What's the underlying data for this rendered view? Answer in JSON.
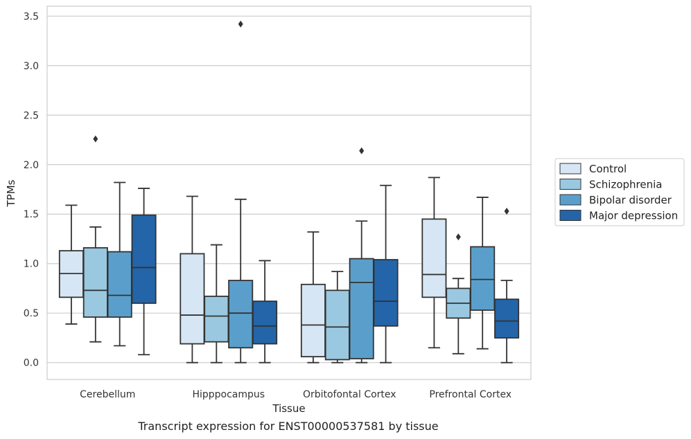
{
  "chart_data": {
    "type": "boxplot",
    "xlabel": "Tissue",
    "ylabel": "TPMs",
    "ylim": [
      -0.17,
      3.6
    ],
    "yticks": [
      0.0,
      0.5,
      1.0,
      1.5,
      2.0,
      2.5,
      3.0,
      3.5
    ],
    "ytick_labels": [
      "0.0",
      "0.5",
      "1.0",
      "1.5",
      "2.0",
      "2.5",
      "3.0",
      "3.5"
    ],
    "grid": true,
    "legend_position": "right",
    "categories": [
      "Cerebellum",
      "Hipppocampus",
      "Orbitofontal Cortex",
      "Prefrontal Cortex"
    ],
    "series": [
      {
        "name": "Control",
        "color": "#d6e6f4",
        "boxes": [
          {
            "whislo": 0.39,
            "q1": 0.66,
            "med": 0.9,
            "q3": 1.13,
            "whishi": 1.59,
            "fliers": []
          },
          {
            "whislo": 0.0,
            "q1": 0.19,
            "med": 0.48,
            "q3": 1.1,
            "whishi": 1.68,
            "fliers": []
          },
          {
            "whislo": 0.0,
            "q1": 0.06,
            "med": 0.38,
            "q3": 0.79,
            "whishi": 1.32,
            "fliers": []
          },
          {
            "whislo": 0.15,
            "q1": 0.66,
            "med": 0.89,
            "q3": 1.45,
            "whishi": 1.87,
            "fliers": []
          }
        ]
      },
      {
        "name": "Schizophrenia",
        "color": "#9ac8e0",
        "boxes": [
          {
            "whislo": 0.21,
            "q1": 0.46,
            "med": 0.73,
            "q3": 1.16,
            "whishi": 1.37,
            "fliers": [
              2.26
            ]
          },
          {
            "whislo": 0.0,
            "q1": 0.21,
            "med": 0.47,
            "q3": 0.67,
            "whishi": 1.19,
            "fliers": []
          },
          {
            "whislo": 0.0,
            "q1": 0.03,
            "med": 0.36,
            "q3": 0.73,
            "whishi": 0.92,
            "fliers": []
          },
          {
            "whislo": 0.09,
            "q1": 0.45,
            "med": 0.6,
            "q3": 0.75,
            "whishi": 0.85,
            "fliers": [
              1.27
            ]
          }
        ]
      },
      {
        "name": "Bipolar disorder",
        "color": "#5a9fcb",
        "boxes": [
          {
            "whislo": 0.17,
            "q1": 0.46,
            "med": 0.68,
            "q3": 1.12,
            "whishi": 1.82,
            "fliers": []
          },
          {
            "whislo": 0.0,
            "q1": 0.15,
            "med": 0.5,
            "q3": 0.83,
            "whishi": 1.65,
            "fliers": [
              3.42
            ]
          },
          {
            "whislo": 0.0,
            "q1": 0.04,
            "med": 0.81,
            "q3": 1.05,
            "whishi": 1.43,
            "fliers": [
              2.14
            ]
          },
          {
            "whislo": 0.14,
            "q1": 0.53,
            "med": 0.84,
            "q3": 1.17,
            "whishi": 1.67,
            "fliers": []
          }
        ]
      },
      {
        "name": "Major depression",
        "color": "#2365a8",
        "boxes": [
          {
            "whislo": 0.08,
            "q1": 0.6,
            "med": 0.96,
            "q3": 1.49,
            "whishi": 1.76,
            "fliers": []
          },
          {
            "whislo": 0.0,
            "q1": 0.19,
            "med": 0.37,
            "q3": 0.62,
            "whishi": 1.03,
            "fliers": []
          },
          {
            "whislo": 0.0,
            "q1": 0.37,
            "med": 0.62,
            "q3": 1.04,
            "whishi": 1.79,
            "fliers": []
          },
          {
            "whislo": 0.0,
            "q1": 0.25,
            "med": 0.42,
            "q3": 0.64,
            "whishi": 0.83,
            "fliers": [
              1.53
            ]
          }
        ]
      }
    ]
  },
  "caption": "Transcript expression for ENST00000537581 by tissue"
}
